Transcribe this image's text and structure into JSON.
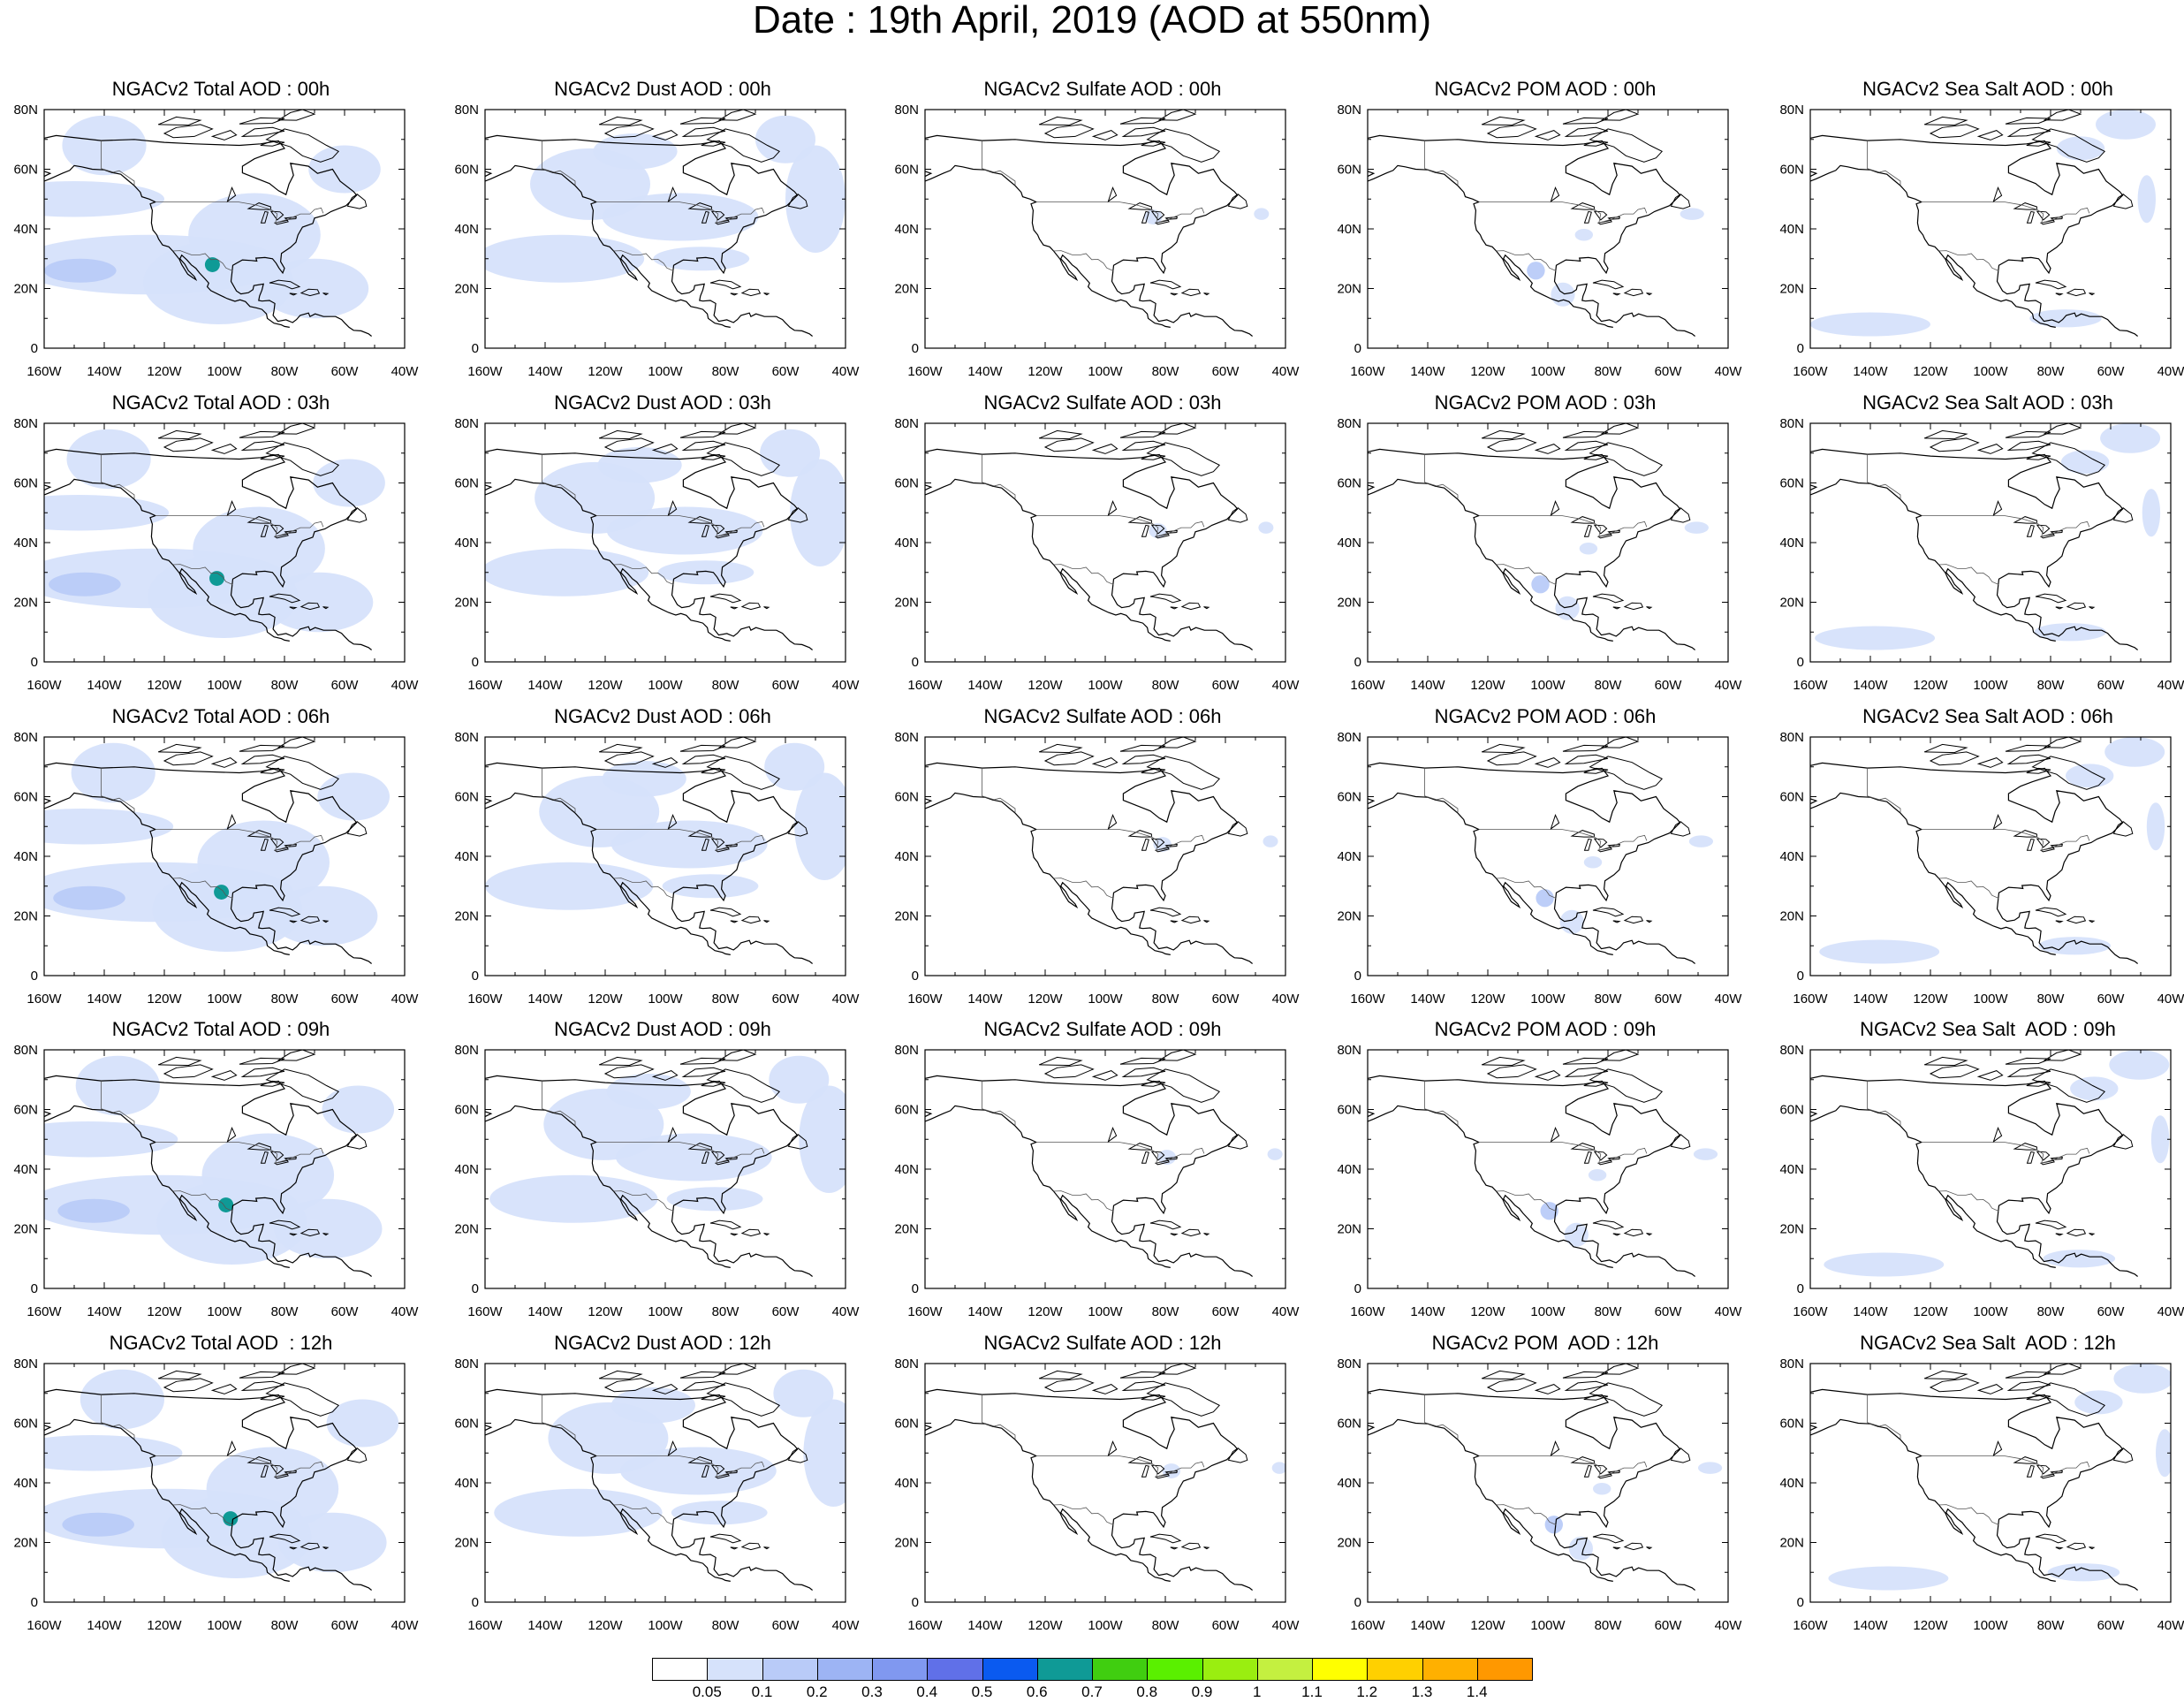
{
  "figure": {
    "title": "Date : 19th April, 2019 (AOD at 550nm)",
    "map_extent": {
      "lon_min": -160,
      "lon_max": -40,
      "lat_min": 0,
      "lat_max": 80
    },
    "lon_tick_labels": [
      "160W",
      "140W",
      "120W",
      "100W",
      "80W",
      "60W",
      "40W"
    ],
    "lat_tick_labels": [
      "0",
      "20N",
      "40N",
      "60N",
      "80N"
    ]
  },
  "panel_titles": [
    [
      "NGACv2 Total AOD : 00h",
      "NGACv2 Dust AOD : 00h",
      "NGACv2 Sulfate AOD : 00h",
      "NGACv2 POM AOD : 00h",
      "NGACv2 Sea Salt AOD : 00h"
    ],
    [
      "NGACv2 Total AOD : 03h",
      "NGACv2 Dust AOD : 03h",
      "NGACv2 Sulfate AOD : 03h",
      "NGACv2 POM AOD : 03h",
      "NGACv2 Sea Salt AOD : 03h"
    ],
    [
      "NGACv2 Total AOD : 06h",
      "NGACv2 Dust AOD : 06h",
      "NGACv2 Sulfate AOD : 06h",
      "NGACv2 POM AOD : 06h",
      "NGACv2 Sea Salt AOD : 06h"
    ],
    [
      "NGACv2 Total AOD : 09h",
      "NGACv2 Dust AOD : 09h",
      "NGACv2 Sulfate AOD : 09h",
      "NGACv2 POM AOD : 09h",
      "NGACv2 Sea Salt  AOD : 09h"
    ],
    [
      "NGACv2 Total AOD  : 12h",
      "NGACv2 Dust AOD : 12h",
      "NGACv2 Sulfate AOD : 12h",
      "NGACv2 POM  AOD : 12h",
      "NGACv2 Sea Salt  AOD : 12h"
    ]
  ],
  "colorbar": {
    "labels": [
      "0.05",
      "0.1",
      "0.2",
      "0.3",
      "0.4",
      "0.5",
      "0.6",
      "0.7",
      "0.8",
      "0.9",
      "1",
      "1.1",
      "1.2",
      "1.3",
      "1.4"
    ],
    "colors": [
      "#ffffff",
      "#d6e2fb",
      "#b9cbf8",
      "#9db4f4",
      "#8098f0",
      "#6070e8",
      "#0a5af0",
      "#0f9a96",
      "#40ce10",
      "#5af000",
      "#9aee10",
      "#c4f040",
      "#ffff00",
      "#ffd000",
      "#ffb000",
      "#ff9800",
      "#ff6e00",
      "#ff2a10"
    ]
  }
}
